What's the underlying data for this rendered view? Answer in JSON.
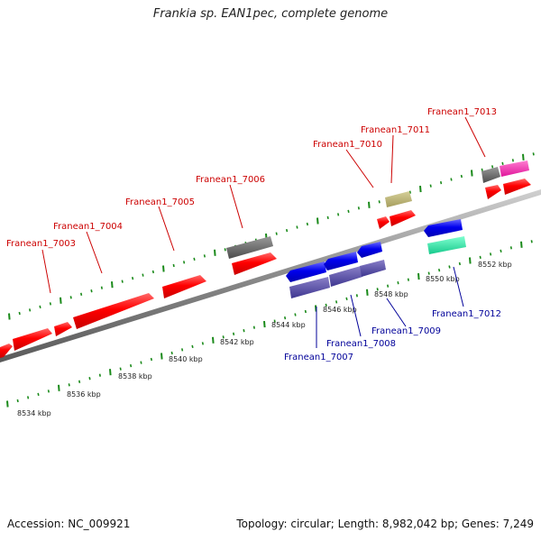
{
  "title": "Frankia sp. EAN1pec, complete genome",
  "footer": {
    "accession": "Accession: NC_009921",
    "meta": "Topology: circular; Length: 8,982,042 bp; Genes: 7,249"
  },
  "colors": {
    "plus_strand_gene": "#ff0000",
    "minus_strand_gene": "#0000ee",
    "plus_label": "#cc0000",
    "minus_label": "#000099",
    "tick": "#1a8a1a",
    "axis": "#8a8a8a"
  },
  "scale_labels": [
    "8534 kbp",
    "8536 kbp",
    "8538 kbp",
    "8540 kbp",
    "8542 kbp",
    "8544 kbp",
    "8546 kbp",
    "8548 kbp",
    "8550 kbp",
    "8552 kbp"
  ],
  "plus_gene_labels": [
    "Franean1_7003",
    "Franean1_7004",
    "Franean1_7005",
    "Franean1_7006",
    "Franean1_7010",
    "Franean1_7011",
    "Franean1_7013"
  ],
  "minus_gene_labels": [
    "Franean1_7007",
    "Franean1_7008",
    "Franean1_7009",
    "Franean1_7012"
  ]
}
